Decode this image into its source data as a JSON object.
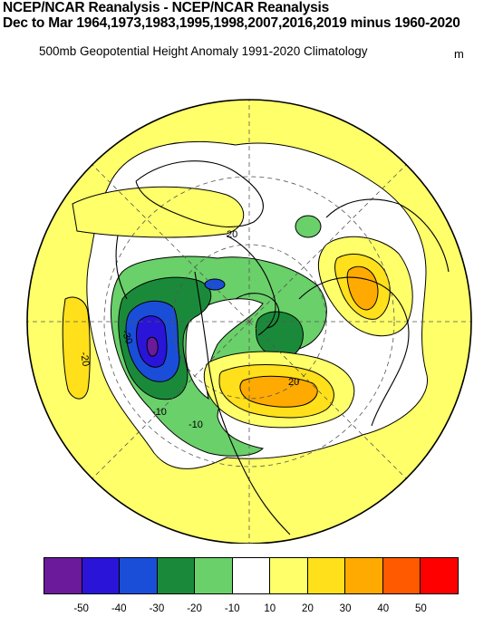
{
  "title": {
    "line1": "NCEP/NCAR Reanalysis - NCEP/NCAR Reanalysis",
    "line2": "Dec to Mar 1964,1973,1983,1995,1998,2007,2016,2019 minus 1960-2020"
  },
  "subtitle": "500mb Geopotential Height Anomaly  1991-2020 Climatology",
  "units": "m",
  "colorbar": {
    "colors": [
      "#6a1a9a",
      "#2a14d8",
      "#1a4ed8",
      "#1a8a3a",
      "#6ad06a",
      "#ffffff",
      "#ffff6a",
      "#ffe01a",
      "#ffaa00",
      "#ff5a00",
      "#ff0000"
    ],
    "ticks": [
      "-50",
      "-40",
      "-30",
      "-20",
      "-10",
      "10",
      "20",
      "30",
      "40",
      "50"
    ]
  },
  "contour_labels": [
    "20",
    "-30",
    "-10",
    "-10",
    "20",
    "-20"
  ]
}
